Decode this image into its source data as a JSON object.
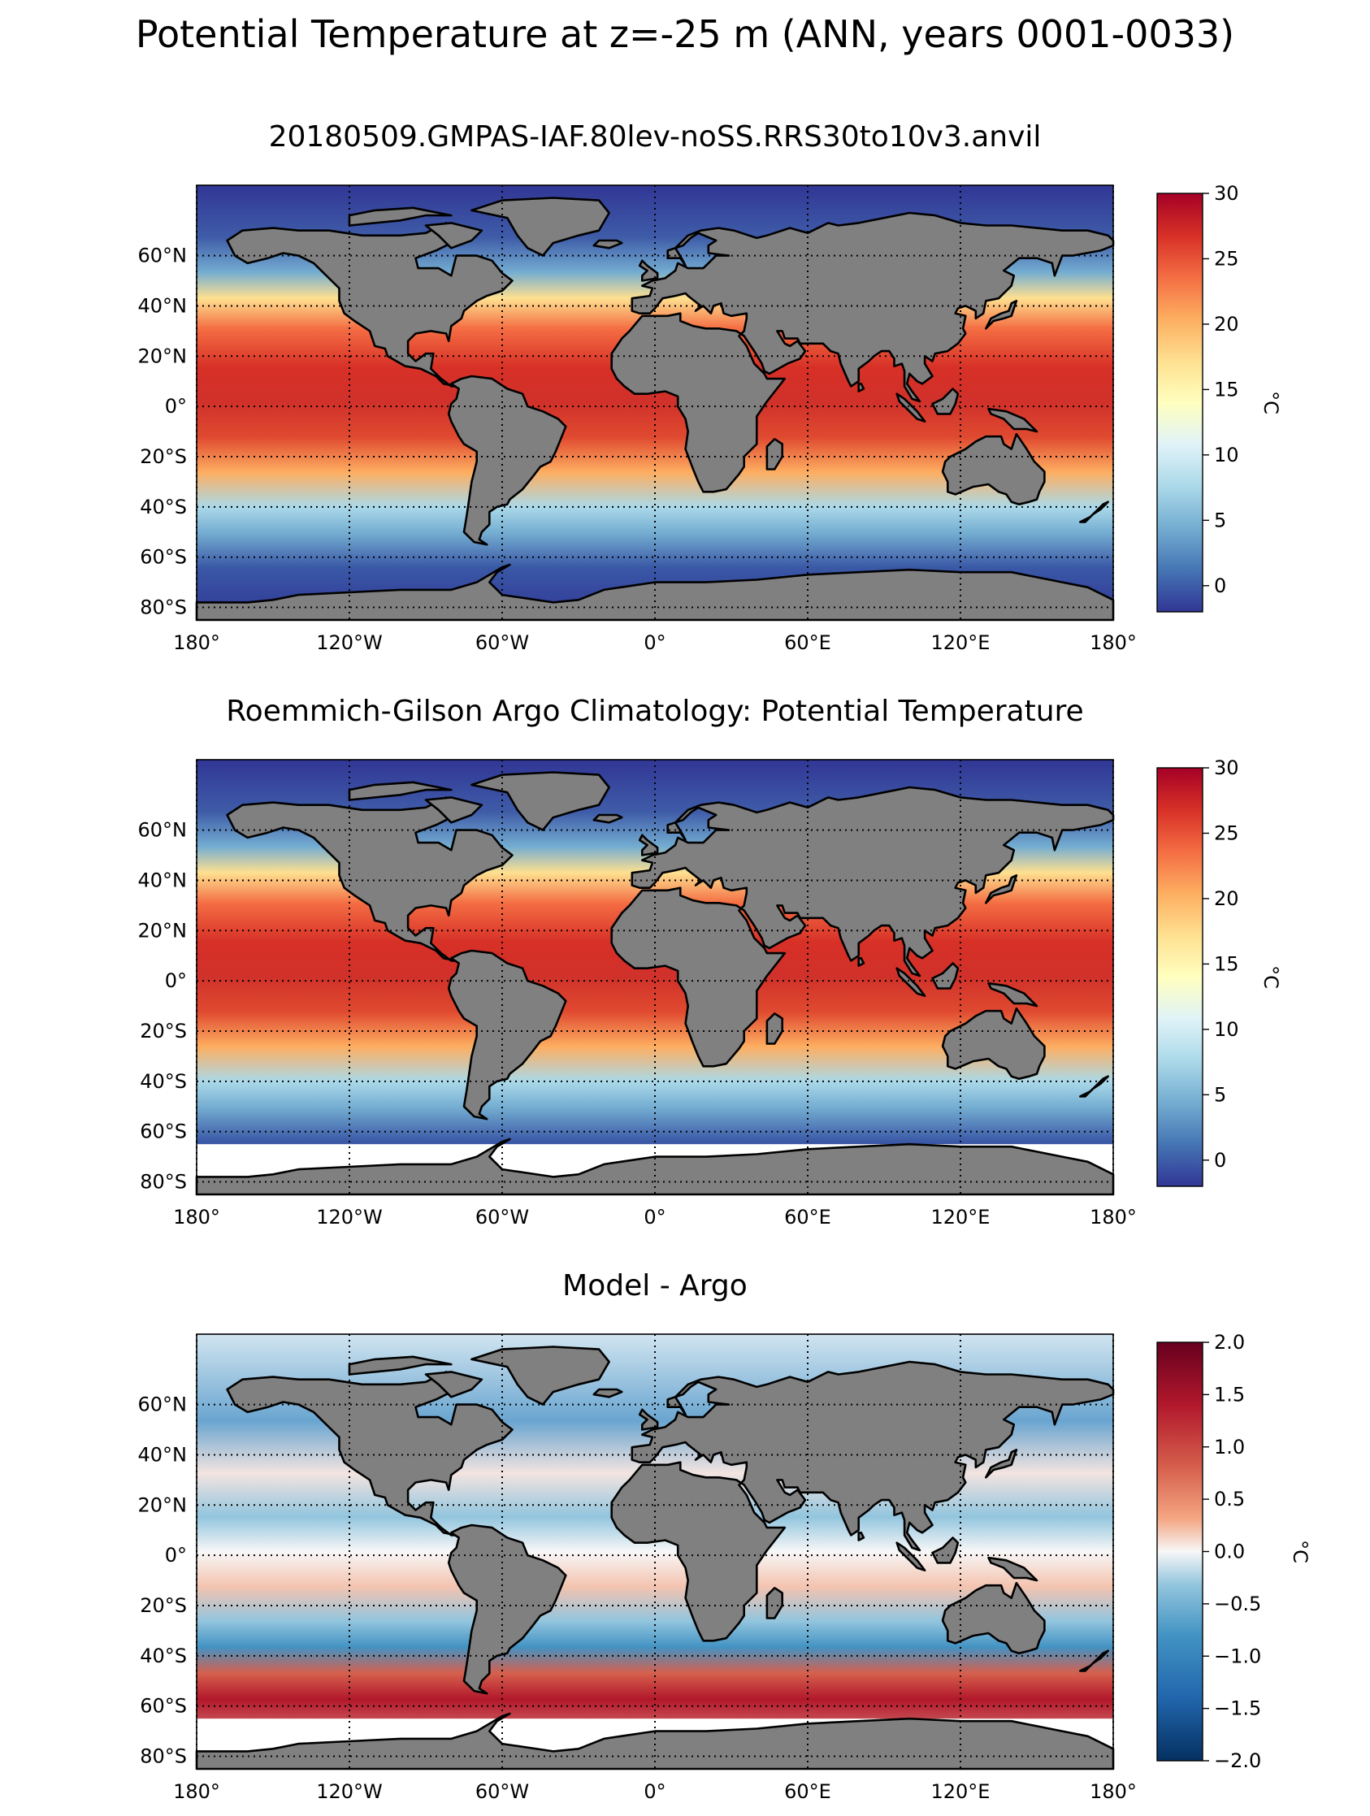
{
  "figure": {
    "suptitle": "Potential Temperature at z=-25 m (ANN, years 0001-0033)"
  },
  "axes": {
    "lon_ticks": [
      "180°",
      "120°W",
      "60°W",
      "0°",
      "60°E",
      "120°E",
      "180°"
    ],
    "lat_ticks": [
      "60°N",
      "40°N",
      "20°N",
      "0°",
      "20°S",
      "40°S",
      "60°S",
      "80°S"
    ]
  },
  "panels": [
    {
      "key": "model",
      "title": "20180509.GMPAS-IAF.80lev-noSS.RRS30to10v3.anvil",
      "colormap": "RdYlBu_r",
      "vmin": -2,
      "vmax": 30,
      "colorbar_ticks": [
        "30",
        "25",
        "20",
        "15",
        "10",
        "5",
        "0"
      ],
      "colorbar_label": "°C"
    },
    {
      "key": "obs",
      "title": "Roemmich-Gilson Argo Climatology: Potential Temperature",
      "colormap": "RdYlBu_r",
      "vmin": -2,
      "vmax": 30,
      "colorbar_ticks": [
        "30",
        "25",
        "20",
        "15",
        "10",
        "5",
        "0"
      ],
      "colorbar_label": "°C"
    },
    {
      "key": "bias",
      "title": "Model - Argo",
      "colormap": "RdBu_r",
      "vmin": -2,
      "vmax": 2,
      "colorbar_ticks": [
        "2.0",
        "1.5",
        "1.0",
        "0.5",
        "0.0",
        "−0.5",
        "−1.0",
        "−1.5",
        "−2.0"
      ],
      "colorbar_label": "°C"
    }
  ],
  "colors": {
    "land": "#808080",
    "coast": "#000000",
    "missing": "#ffffff",
    "grid": "#000000"
  }
}
